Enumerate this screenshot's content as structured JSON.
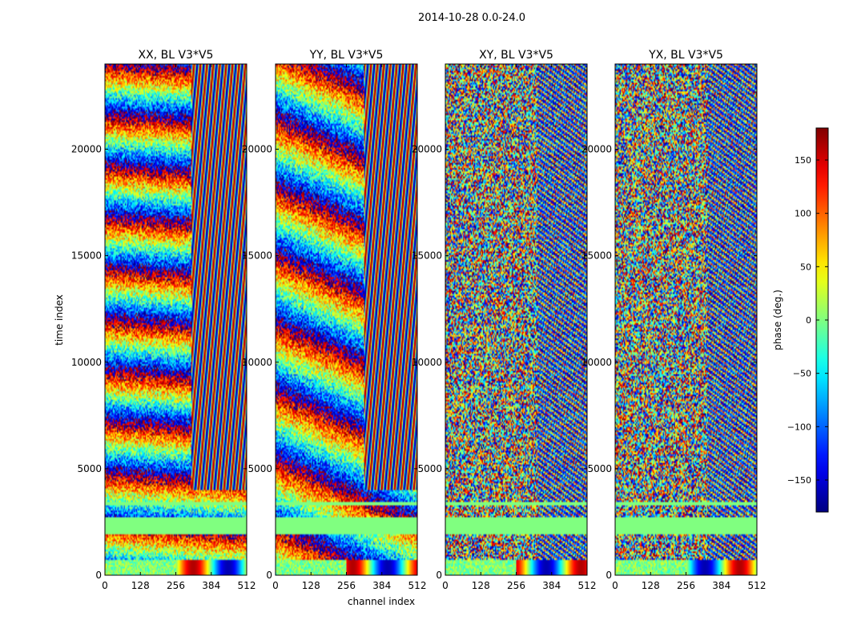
{
  "figure": {
    "suptitle": "2014-10-28 0.0-24.0"
  },
  "chart_data": {
    "type": "heatmap",
    "xlabel": "channel index",
    "ylabel": "time index",
    "xlim": [
      0,
      512
    ],
    "ylim": [
      0,
      24000
    ],
    "x_ticks": [
      0,
      128,
      256,
      384,
      512
    ],
    "y_ticks": [
      0,
      5000,
      10000,
      15000,
      20000
    ],
    "panels": [
      {
        "title": "XX, BL V3*V5",
        "mode": "xx"
      },
      {
        "title": "YY, BL V3*V5",
        "mode": "yy"
      },
      {
        "title": "XY, BL V3*V5",
        "mode": "xy"
      },
      {
        "title": "YX, BL V3*V5",
        "mode": "yx"
      }
    ],
    "colorbar": {
      "label": "phase (deg.)",
      "range": [
        -180,
        180
      ],
      "ticks": [
        -150,
        -100,
        -50,
        0,
        50,
        100,
        150
      ],
      "colormap": "jet"
    }
  }
}
